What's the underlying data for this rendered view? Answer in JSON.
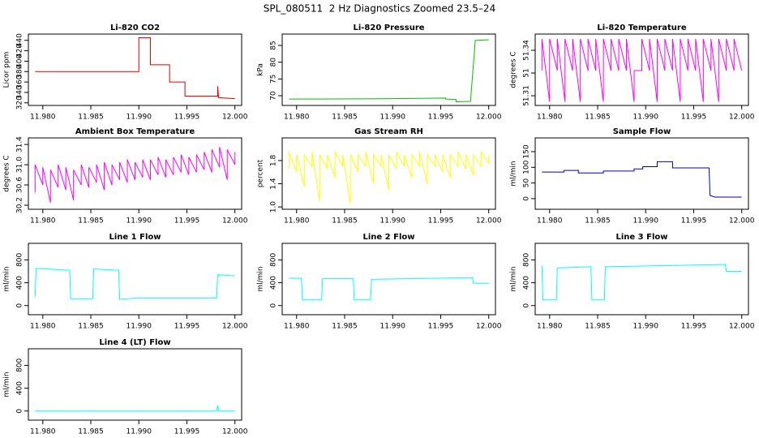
{
  "title": "SPL_080511  2 Hz Diagnostics Zoomed 23.5–24",
  "chart_data": [
    {
      "type": "line",
      "title": "Li-820 CO2",
      "ylabel": "Licor ppm",
      "color": "#e00000",
      "xlim": [
        11.9785,
        12.0007
      ],
      "xticks": [
        {
          "value": 11.98,
          "label": "11.980"
        },
        11.985,
        {
          "value": 11.99,
          "label": "11.990"
        },
        11.995,
        {
          "value": 12,
          "label": "12.000"
        }
      ],
      "ylim": [
        315,
        452
      ],
      "yticks": [
        320,
        340,
        360,
        380,
        400,
        420,
        440
      ],
      "x": [
        11.9792,
        11.99,
        11.99,
        11.9912,
        11.9912,
        11.9932,
        11.9932,
        11.9948,
        11.9948,
        11.9982,
        11.9982,
        11.9983,
        11.9983,
        12.0
      ],
      "values": [
        380,
        380,
        445,
        445,
        393,
        393,
        360,
        360,
        333,
        333,
        352,
        330,
        330,
        328
      ]
    },
    {
      "type": "line",
      "title": "Li-820 Pressure",
      "ylabel": "kPa",
      "color": "#00c000",
      "xlim": [
        11.9785,
        12.0007
      ],
      "xticks": [
        {
          "value": 11.98,
          "label": "11.980"
        },
        11.985,
        {
          "value": 11.99,
          "label": "11.990"
        },
        11.995,
        {
          "value": 12,
          "label": "12.000"
        }
      ],
      "ylim": [
        67.1,
        88.4
      ],
      "yticks": [
        70,
        75,
        80,
        85
      ],
      "x": [
        11.9792,
        11.989,
        11.9955,
        11.9955,
        11.9966,
        11.9966,
        11.9981,
        11.9986,
        12.0
      ],
      "values": [
        69,
        69.1,
        69.3,
        69.0,
        68.9,
        68.2,
        68.3,
        86.5,
        86.7
      ]
    },
    {
      "type": "line",
      "title": "Li-820 Temperature",
      "ylabel": "degrees C",
      "color": "#ff00ff",
      "xlim": [
        11.9785,
        12.0007
      ],
      "xticks": [
        {
          "value": 11.98,
          "label": "11.980"
        },
        11.985,
        {
          "value": 11.99,
          "label": "11.990"
        },
        11.995,
        {
          "value": 12,
          "label": "12.000"
        }
      ],
      "ylim": [
        51.3036,
        51.3507
      ],
      "yticks": [
        51.31,
        {
          "value": 51.325,
          "label": "51"
        },
        51.34
      ],
      "x": [
        11.9792,
        11.9792,
        11.98,
        11.98,
        11.9808,
        11.9808,
        11.9816,
        11.9816,
        11.9824,
        11.9824,
        11.9832,
        11.9832,
        11.984,
        11.984,
        11.9848,
        11.9848,
        11.9856,
        11.9856,
        11.9864,
        11.9864,
        11.9872,
        11.9872,
        11.988,
        11.988,
        11.9888,
        11.9888,
        11.9896,
        11.9896,
        11.9904,
        11.9904,
        11.9912,
        11.9912,
        11.992,
        11.992,
        11.9928,
        11.9928,
        11.9936,
        11.9936,
        11.9944,
        11.9944,
        11.9952,
        11.9952,
        11.996,
        11.996,
        11.9968,
        11.9968,
        11.9976,
        11.9976,
        11.9984,
        11.9984,
        11.9992,
        11.9992,
        12.0,
        12.0
      ],
      "values": [
        51.3266,
        51.3475,
        51.306,
        51.3475,
        51.3266,
        51.3475,
        51.306,
        51.3475,
        51.3266,
        51.3475,
        51.306,
        51.3475,
        51.3266,
        51.3475,
        51.3266,
        51.3475,
        51.306,
        51.3475,
        51.3266,
        51.3475,
        51.3266,
        51.3475,
        51.3266,
        51.3475,
        51.306,
        51.3266,
        51.3266,
        51.3475,
        51.3266,
        51.3475,
        51.306,
        51.3475,
        51.3266,
        51.3475,
        51.3266,
        51.3475,
        51.306,
        51.3475,
        51.3266,
        51.3475,
        51.3266,
        51.3475,
        51.306,
        51.3475,
        51.3266,
        51.3475,
        51.306,
        51.3475,
        51.3266,
        51.3475,
        51.3266,
        51.3475,
        51.3266,
        51.3266
      ]
    },
    {
      "type": "line",
      "title": "Ambient Box Temperature",
      "ylabel": "degrees C",
      "color": "#ff00ff",
      "xlim": [
        11.9785,
        12.0007
      ],
      "xticks": [
        {
          "value": 11.98,
          "label": "11.980"
        },
        11.985,
        {
          "value": 11.99,
          "label": "11.990"
        },
        11.995,
        {
          "value": 12,
          "label": "12.000"
        }
      ],
      "ylim": [
        30.12,
        31.53
      ],
      "yticks": [
        30.2,
        30.6,
        {
          "value": 31,
          "label": "31.0"
        },
        31.4
      ],
      "x": [
        11.9792,
        11.9792,
        11.98,
        11.98,
        11.9808,
        11.9808,
        11.9816,
        11.9816,
        11.9824,
        11.9824,
        11.9832,
        11.9832,
        11.984,
        11.984,
        11.9848,
        11.9848,
        11.9856,
        11.9856,
        11.9864,
        11.9864,
        11.9872,
        11.9872,
        11.988,
        11.988,
        11.9888,
        11.9888,
        11.9896,
        11.9896,
        11.9904,
        11.9904,
        11.9912,
        11.9912,
        11.992,
        11.992,
        11.9928,
        11.9928,
        11.9936,
        11.9936,
        11.9944,
        11.9944,
        11.9952,
        11.9952,
        11.996,
        11.996,
        11.9968,
        11.9968,
        11.9976,
        11.9976,
        11.9984,
        11.9984,
        11.9992,
        11.9992,
        12.0,
        12.0
      ],
      "values": [
        30.45,
        31.0,
        30.6,
        30.95,
        30.25,
        30.9,
        30.55,
        31.0,
        30.5,
        30.95,
        30.3,
        30.9,
        30.6,
        31.0,
        30.55,
        30.95,
        30.65,
        31.0,
        30.5,
        31.05,
        30.6,
        31.0,
        30.7,
        31.05,
        30.65,
        31.1,
        30.7,
        31.05,
        30.75,
        31.1,
        30.7,
        31.1,
        30.8,
        31.15,
        30.75,
        31.1,
        30.8,
        31.15,
        30.85,
        31.2,
        30.8,
        31.15,
        30.85,
        31.2,
        30.9,
        31.25,
        30.85,
        31.3,
        30.95,
        31.35,
        30.7,
        31.3,
        31.0,
        31.25
      ]
    },
    {
      "type": "line",
      "title": "Gas Stream RH",
      "ylabel": "percent",
      "color": "#ffff00",
      "xlim": [
        11.9785,
        12.0007
      ],
      "xticks": [
        {
          "value": 11.98,
          "label": "11.980"
        },
        11.985,
        {
          "value": 11.99,
          "label": "11.990"
        },
        11.995,
        {
          "value": 12,
          "label": "12.000"
        }
      ],
      "ylim": [
        0.96,
        2.19
      ],
      "yticks": [
        {
          "value": 1,
          "label": "1.0"
        },
        1.4,
        1.8
      ],
      "x": [
        11.9792,
        11.9792,
        11.98,
        11.98,
        11.9808,
        11.9808,
        11.9816,
        11.9816,
        11.9824,
        11.9824,
        11.9832,
        11.9832,
        11.984,
        11.984,
        11.9848,
        11.9848,
        11.9856,
        11.9856,
        11.9864,
        11.9864,
        11.9872,
        11.9872,
        11.988,
        11.988,
        11.9888,
        11.9888,
        11.9896,
        11.9896,
        11.9904,
        11.9904,
        11.9912,
        11.9912,
        11.992,
        11.992,
        11.9928,
        11.9928,
        11.9936,
        11.9936,
        11.9944,
        11.9944,
        11.9952,
        11.9952,
        11.996,
        11.996,
        11.9968,
        11.9968,
        11.9976,
        11.9976,
        11.9984,
        11.9984,
        11.9992,
        11.9992,
        12.0,
        12.0
      ],
      "values": [
        1.65,
        1.95,
        1.6,
        1.9,
        1.35,
        1.9,
        1.7,
        1.95,
        1.1,
        1.9,
        1.65,
        1.9,
        1.5,
        1.95,
        1.7,
        1.9,
        1.05,
        1.9,
        1.6,
        1.9,
        1.7,
        1.95,
        1.4,
        1.9,
        1.7,
        1.9,
        1.3,
        1.9,
        1.65,
        1.95,
        1.7,
        1.9,
        1.5,
        1.9,
        1.7,
        1.95,
        1.4,
        1.9,
        1.7,
        1.9,
        1.6,
        1.9,
        1.5,
        1.9,
        1.7,
        1.95,
        1.65,
        1.9,
        1.55,
        1.9,
        1.7,
        1.95,
        1.75,
        1.9
      ]
    },
    {
      "type": "line",
      "title": "Sample Flow",
      "ylabel": "ml/min",
      "color": "#0000c0",
      "xlim": [
        11.9785,
        12.0007
      ],
      "xticks": [
        {
          "value": 11.98,
          "label": "11.980"
        },
        11.985,
        {
          "value": 11.99,
          "label": "11.990"
        },
        11.995,
        {
          "value": 12,
          "label": "12.000"
        }
      ],
      "ylim": [
        -34,
        194
      ],
      "yticks": [
        0,
        50,
        100,
        150
      ],
      "x": [
        11.9792,
        11.9815,
        11.9815,
        11.983,
        11.983,
        11.9856,
        11.9856,
        11.9888,
        11.9888,
        11.9897,
        11.9897,
        11.9912,
        11.9912,
        11.9928,
        11.9928,
        11.9966,
        11.9967,
        11.9972,
        12.0
      ],
      "values": [
        85,
        85,
        90,
        90,
        82,
        82,
        88,
        88,
        95,
        95,
        102,
        102,
        118,
        118,
        98,
        98,
        10,
        5,
        5
      ]
    },
    {
      "type": "line",
      "title": "Line 1 Flow",
      "ylabel": "ml/min",
      "color": "#00ffff",
      "xlim": [
        11.9785,
        12.0007
      ],
      "xticks": [
        {
          "value": 11.98,
          "label": "11.980"
        },
        11.985,
        {
          "value": 11.99,
          "label": "11.990"
        },
        11.995,
        {
          "value": 12,
          "label": "12.000"
        }
      ],
      "ylim": [
        -160,
        1090
      ],
      "yticks": [
        0,
        400,
        800
      ],
      "x": [
        11.9792,
        11.9793,
        11.9828,
        11.9829,
        11.9852,
        11.9853,
        11.9879,
        11.988,
        11.9897,
        11.9981,
        11.9982,
        12.0
      ],
      "values": [
        150,
        650,
        620,
        120,
        120,
        640,
        620,
        110,
        130,
        130,
        540,
        520
      ]
    },
    {
      "type": "line",
      "title": "Line 2 Flow",
      "ylabel": "ml/min",
      "color": "#00ffff",
      "xlim": [
        11.9785,
        12.0007
      ],
      "xticks": [
        {
          "value": 11.98,
          "label": "11.980"
        },
        11.985,
        {
          "value": 11.99,
          "label": "11.990"
        },
        11.995,
        {
          "value": 12,
          "label": "12.000"
        }
      ],
      "ylim": [
        -160,
        1090
      ],
      "yticks": [
        0,
        400,
        800
      ],
      "x": [
        11.9792,
        11.9805,
        11.9806,
        11.9826,
        11.9827,
        11.9859,
        11.986,
        11.9877,
        11.9878,
        11.9983,
        11.9984,
        12.0
      ],
      "values": [
        480,
        480,
        100,
        100,
        470,
        470,
        100,
        100,
        460,
        490,
        390,
        390
      ]
    },
    {
      "type": "line",
      "title": "Line 3 Flow",
      "ylabel": "ml/min",
      "color": "#00ffff",
      "xlim": [
        11.9785,
        12.0007
      ],
      "xticks": [
        {
          "value": 11.98,
          "label": "11.980"
        },
        11.985,
        {
          "value": 11.99,
          "label": "11.990"
        },
        11.995,
        {
          "value": 12,
          "label": "12.000"
        }
      ],
      "ylim": [
        -160,
        1090
      ],
      "yticks": [
        0,
        400,
        800
      ],
      "x": [
        11.9792,
        11.9793,
        11.9807,
        11.9808,
        11.9843,
        11.9844,
        11.9857,
        11.9858,
        11.9983,
        11.9984,
        12.0
      ],
      "values": [
        700,
        100,
        100,
        660,
        680,
        100,
        100,
        680,
        720,
        600,
        600
      ]
    },
    {
      "type": "line",
      "title": "Line 4 (LT) Flow",
      "ylabel": "ml/min",
      "color": "#00ffff",
      "xlim": [
        11.9785,
        12.0007
      ],
      "xticks": [
        {
          "value": 11.98,
          "label": "11.980"
        },
        11.985,
        {
          "value": 11.99,
          "label": "11.990"
        },
        11.995,
        {
          "value": 12,
          "label": "12.000"
        }
      ],
      "ylim": [
        -160,
        1090
      ],
      "yticks": [
        0,
        400,
        800
      ],
      "x": [
        11.9792,
        11.9981,
        11.9982,
        11.9983,
        12.0
      ],
      "values": [
        0,
        0,
        100,
        0,
        0
      ]
    }
  ]
}
